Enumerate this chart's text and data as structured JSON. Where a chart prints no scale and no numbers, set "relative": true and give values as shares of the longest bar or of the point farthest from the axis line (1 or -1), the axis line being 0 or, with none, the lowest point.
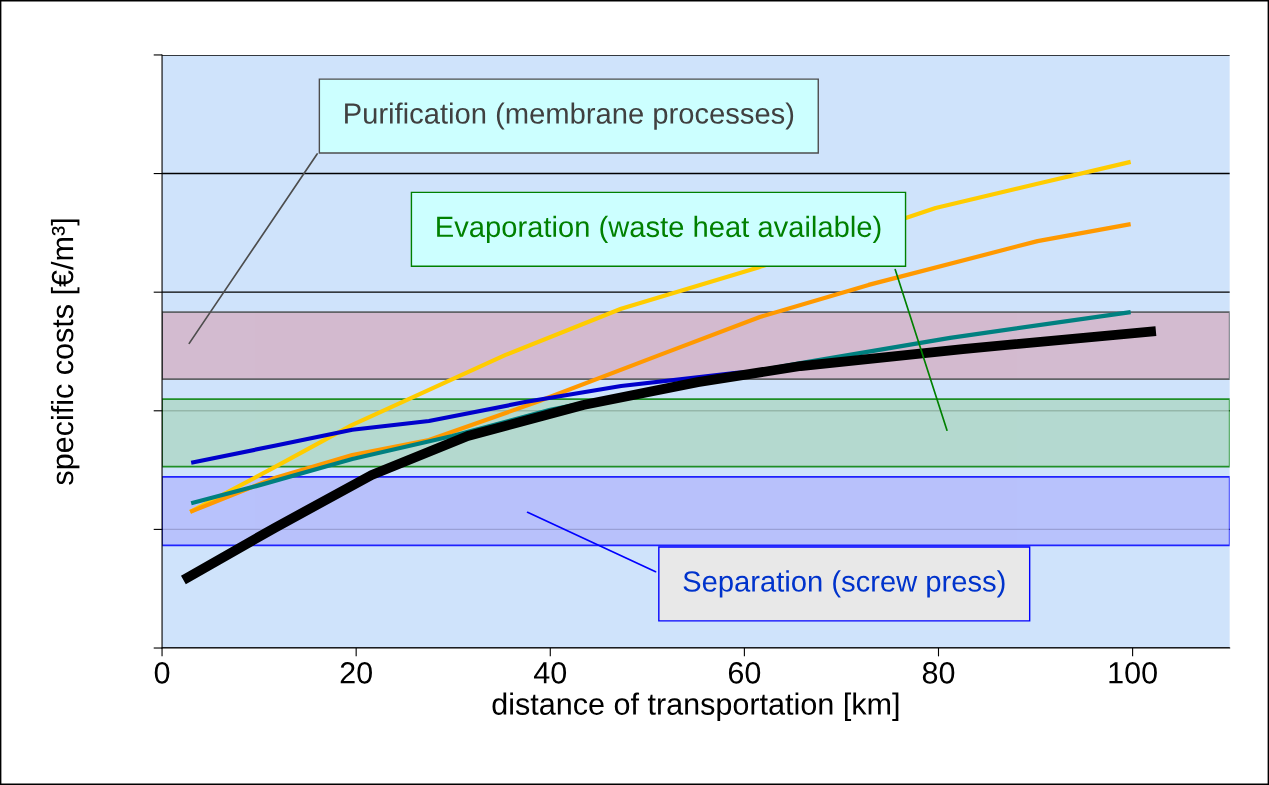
{
  "chart_data": {
    "type": "line",
    "relative": true,
    "xlabel": "distance of transportation [km]",
    "ylabel": "specific costs [€/m³]",
    "xlim": [
      0,
      110
    ],
    "xticks": [
      0,
      20,
      40,
      60,
      80,
      100
    ],
    "grid": "y",
    "marker": "none",
    "line_style": "solid",
    "series": [
      {
        "color": "#ffcc00",
        "x": [
          2.9,
          11.6,
          19.6,
          27.5,
          35.4,
          47.3,
          61.6,
          79.7,
          90.2,
          99.8
        ],
        "values": [
          0.28,
          0.372,
          0.459,
          0.531,
          0.603,
          0.698,
          0.784,
          0.905,
          0.955,
          1.0
        ]
      },
      {
        "color": "#ff9900",
        "x": [
          2.9,
          11.6,
          19.6,
          27.5,
          38.6,
          51.3,
          61.6,
          72.8,
          90.2,
          99.8
        ],
        "values": [
          0.28,
          0.35,
          0.397,
          0.428,
          0.506,
          0.603,
          0.681,
          0.747,
          0.837,
          0.872
        ]
      },
      {
        "color": "#008080",
        "x": [
          3.0,
          9.7,
          19.6,
          29.9,
          40.0,
          50.3,
          65.8,
          81.2,
          99.8
        ],
        "values": [
          0.298,
          0.333,
          0.389,
          0.436,
          0.49,
          0.531,
          0.586,
          0.638,
          0.691
        ]
      },
      {
        "color": "#0000cc",
        "x": [
          3.0,
          11.6,
          19.6,
          27.5,
          37.4,
          47.3,
          59.2,
          61.6
        ],
        "values": [
          0.381,
          0.416,
          0.449,
          0.467,
          0.506,
          0.539,
          0.566,
          0.568
        ]
      },
      {
        "color": "#000000",
        "x": [
          2.2,
          11.6,
          21.6,
          31.5,
          43.4,
          55.2,
          65.8,
          82.5,
          102.4
        ],
        "values": [
          0.14,
          0.247,
          0.356,
          0.436,
          0.5,
          0.547,
          0.58,
          0.615,
          0.652
        ]
      }
    ],
    "bands": [
      {
        "axis": "y",
        "from": 0.553,
        "to": 0.691,
        "label": "Purification (membrane processes)",
        "color": "#d4b4c8"
      },
      {
        "axis": "y",
        "from": 0.373,
        "to": 0.512,
        "label": "Evaporation (waste heat available)",
        "color": "#b0d8c8"
      },
      {
        "axis": "y",
        "from": 0.211,
        "to": 0.352,
        "label": "Separation (screw press)",
        "color": "#b4bcfc"
      }
    ]
  }
}
